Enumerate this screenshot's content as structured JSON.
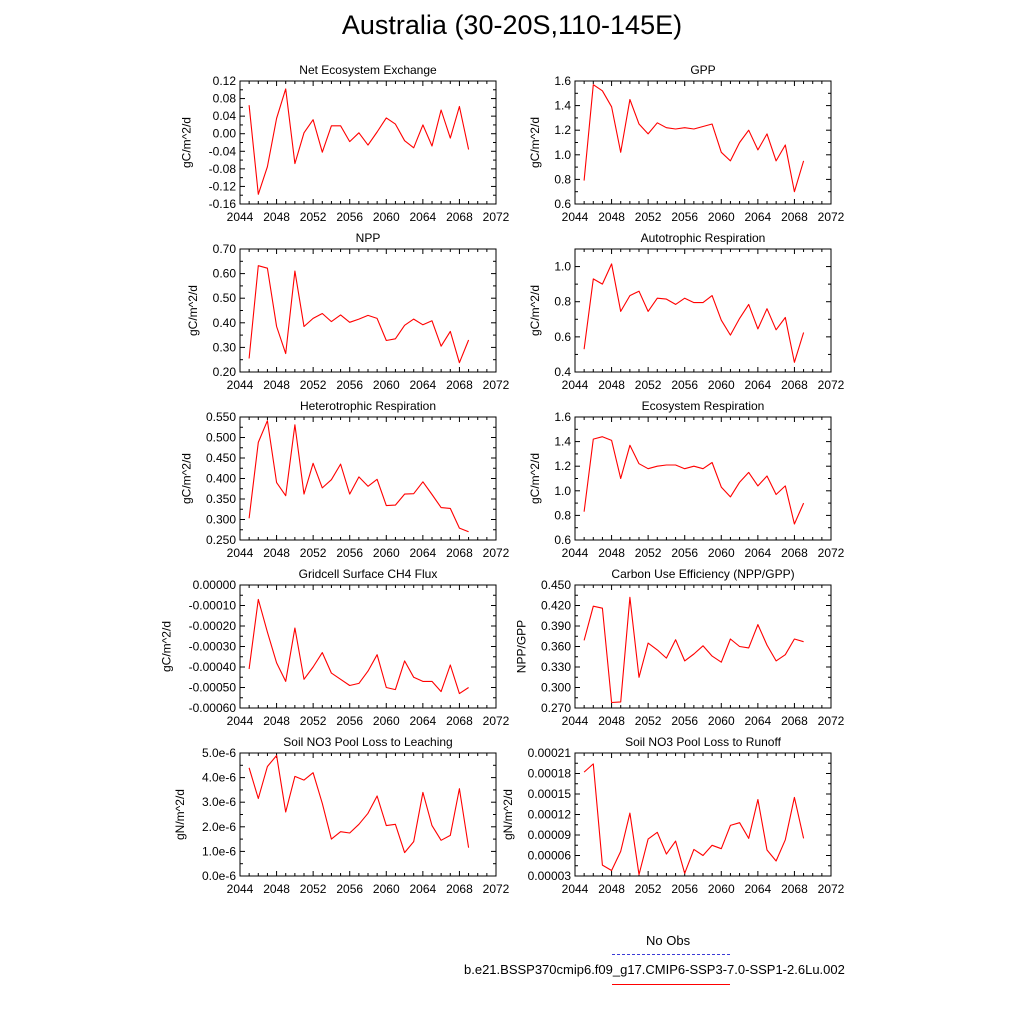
{
  "title": "Australia (30-20S,110-145E)",
  "legend": {
    "items": [
      {
        "label": "No Obs",
        "color": "#3b3bd6",
        "style": "dashed"
      },
      {
        "label": "b.e21.BSSP370cmip6.f09_g17.CMIP6-SSP3-7.0-SSP1-2.6Lu.002",
        "color": "#ff0000",
        "style": "solid"
      }
    ]
  },
  "chart_data": [
    {
      "type": "line",
      "title": "Net Ecosystem Exchange",
      "ylabel": "gC/m^2/d",
      "xlim": [
        2044,
        2072
      ],
      "ylim": [
        -0.16,
        0.12
      ],
      "yticks": [
        "-0.16",
        "-0.12",
        "-0.08",
        "-0.04",
        "0.00",
        "0.04",
        "0.08",
        "0.12"
      ],
      "xticks": [
        "2044",
        "2048",
        "2052",
        "2056",
        "2060",
        "2064",
        "2068",
        "2072"
      ],
      "series": [
        {
          "color": "#ff0000",
          "x": [
            2045,
            2046,
            2047,
            2048,
            2049,
            2050,
            2051,
            2052,
            2053,
            2054,
            2055,
            2056,
            2057,
            2058,
            2059,
            2060,
            2061,
            2062,
            2063,
            2064,
            2065,
            2066,
            2067,
            2068,
            2069
          ],
          "y": [
            0.065,
            -0.138,
            -0.075,
            0.035,
            0.102,
            -0.068,
            0.002,
            0.032,
            -0.042,
            0.018,
            0.018,
            -0.018,
            0.002,
            -0.026,
            0.004,
            0.036,
            0.022,
            -0.016,
            -0.032,
            0.02,
            -0.028,
            0.054,
            -0.01,
            0.062,
            -0.036
          ]
        }
      ]
    },
    {
      "type": "line",
      "title": "GPP",
      "ylabel": "gC/m^2/d",
      "xlim": [
        2044,
        2072
      ],
      "ylim": [
        0.6,
        1.6
      ],
      "yticks": [
        "0.6",
        "0.8",
        "1.0",
        "1.2",
        "1.4",
        "1.6"
      ],
      "xticks": [
        "2044",
        "2048",
        "2052",
        "2056",
        "2060",
        "2064",
        "2068",
        "2072"
      ],
      "series": [
        {
          "color": "#ff0000",
          "x": [
            2045,
            2046,
            2047,
            2048,
            2049,
            2050,
            2051,
            2052,
            2053,
            2054,
            2055,
            2056,
            2057,
            2058,
            2059,
            2060,
            2061,
            2062,
            2063,
            2064,
            2065,
            2066,
            2067,
            2068,
            2069
          ],
          "y": [
            0.79,
            1.57,
            1.52,
            1.39,
            1.02,
            1.45,
            1.25,
            1.17,
            1.26,
            1.22,
            1.21,
            1.22,
            1.21,
            1.23,
            1.25,
            1.02,
            0.95,
            1.1,
            1.2,
            1.04,
            1.17,
            0.95,
            1.08,
            0.7,
            0.95
          ]
        }
      ]
    },
    {
      "type": "line",
      "title": "NPP",
      "ylabel": "gC/m^2/d",
      "xlim": [
        2044,
        2072
      ],
      "ylim": [
        0.2,
        0.7
      ],
      "yticks": [
        "0.20",
        "0.30",
        "0.40",
        "0.50",
        "0.60",
        "0.70"
      ],
      "xticks": [
        "2044",
        "2048",
        "2052",
        "2056",
        "2060",
        "2064",
        "2068",
        "2072"
      ],
      "series": [
        {
          "color": "#ff0000",
          "x": [
            2045,
            2046,
            2047,
            2048,
            2049,
            2050,
            2051,
            2052,
            2053,
            2054,
            2055,
            2056,
            2057,
            2058,
            2059,
            2060,
            2061,
            2062,
            2063,
            2064,
            2065,
            2066,
            2067,
            2068,
            2069
          ],
          "y": [
            0.255,
            0.632,
            0.622,
            0.385,
            0.275,
            0.61,
            0.385,
            0.418,
            0.438,
            0.405,
            0.432,
            0.402,
            0.415,
            0.43,
            0.418,
            0.328,
            0.335,
            0.39,
            0.415,
            0.392,
            0.408,
            0.305,
            0.365,
            0.238,
            0.33
          ]
        }
      ]
    },
    {
      "type": "line",
      "title": "Autotrophic Respiration",
      "ylabel": "gC/m^2/d",
      "xlim": [
        2044,
        2072
      ],
      "ylim": [
        0.4,
        1.1
      ],
      "yticks": [
        "0.4",
        "0.6",
        "0.8",
        "1.0"
      ],
      "xticks": [
        "2044",
        "2048",
        "2052",
        "2056",
        "2060",
        "2064",
        "2068",
        "2072"
      ],
      "series": [
        {
          "color": "#ff0000",
          "x": [
            2045,
            2046,
            2047,
            2048,
            2049,
            2050,
            2051,
            2052,
            2053,
            2054,
            2055,
            2056,
            2057,
            2058,
            2059,
            2060,
            2061,
            2062,
            2063,
            2064,
            2065,
            2066,
            2067,
            2068,
            2069
          ],
          "y": [
            0.53,
            0.93,
            0.9,
            1.015,
            0.745,
            0.835,
            0.86,
            0.745,
            0.82,
            0.815,
            0.785,
            0.82,
            0.795,
            0.795,
            0.835,
            0.695,
            0.61,
            0.705,
            0.785,
            0.645,
            0.76,
            0.64,
            0.71,
            0.455,
            0.625
          ]
        }
      ]
    },
    {
      "type": "line",
      "title": "Heterotrophic Respiration",
      "ylabel": "gC/m^2/d",
      "xlim": [
        2044,
        2072
      ],
      "ylim": [
        0.25,
        0.55
      ],
      "yticks": [
        "0.250",
        "0.300",
        "0.350",
        "0.400",
        "0.450",
        "0.500",
        "0.550"
      ],
      "xticks": [
        "2044",
        "2048",
        "2052",
        "2056",
        "2060",
        "2064",
        "2068",
        "2072"
      ],
      "series": [
        {
          "color": "#ff0000",
          "x": [
            2045,
            2046,
            2047,
            2048,
            2049,
            2050,
            2051,
            2052,
            2053,
            2054,
            2055,
            2056,
            2057,
            2058,
            2059,
            2060,
            2061,
            2062,
            2063,
            2064,
            2065,
            2066,
            2067,
            2068,
            2069
          ],
          "y": [
            0.303,
            0.488,
            0.541,
            0.39,
            0.358,
            0.531,
            0.362,
            0.437,
            0.377,
            0.397,
            0.435,
            0.362,
            0.404,
            0.381,
            0.398,
            0.334,
            0.335,
            0.362,
            0.363,
            0.392,
            0.361,
            0.329,
            0.327,
            0.279,
            0.27
          ]
        }
      ]
    },
    {
      "type": "line",
      "title": "Ecosystem Respiration",
      "ylabel": "gC/m^2/d",
      "xlim": [
        2044,
        2072
      ],
      "ylim": [
        0.6,
        1.6
      ],
      "yticks": [
        "0.6",
        "0.8",
        "1.0",
        "1.2",
        "1.4",
        "1.6"
      ],
      "xticks": [
        "2044",
        "2048",
        "2052",
        "2056",
        "2060",
        "2064",
        "2068",
        "2072"
      ],
      "series": [
        {
          "color": "#ff0000",
          "x": [
            2045,
            2046,
            2047,
            2048,
            2049,
            2050,
            2051,
            2052,
            2053,
            2054,
            2055,
            2056,
            2057,
            2058,
            2059,
            2060,
            2061,
            2062,
            2063,
            2064,
            2065,
            2066,
            2067,
            2068,
            2069
          ],
          "y": [
            0.83,
            1.42,
            1.44,
            1.41,
            1.1,
            1.37,
            1.22,
            1.18,
            1.2,
            1.21,
            1.21,
            1.18,
            1.2,
            1.18,
            1.23,
            1.03,
            0.95,
            1.07,
            1.15,
            1.04,
            1.12,
            0.97,
            1.04,
            0.73,
            0.9
          ]
        }
      ]
    },
    {
      "type": "line",
      "title": "Gridcell Surface CH4 Flux",
      "ylabel": "gC/m^2/d",
      "xlim": [
        2044,
        2072
      ],
      "ylim": [
        -0.0006,
        0.0
      ],
      "yticks": [
        "-0.00060",
        "-0.00050",
        "-0.00040",
        "-0.00030",
        "-0.00020",
        "-0.00010",
        "0.00000"
      ],
      "xticks": [
        "2044",
        "2048",
        "2052",
        "2056",
        "2060",
        "2064",
        "2068",
        "2072"
      ],
      "series": [
        {
          "color": "#ff0000",
          "x": [
            2045,
            2046,
            2047,
            2048,
            2049,
            2050,
            2051,
            2052,
            2053,
            2054,
            2055,
            2056,
            2057,
            2058,
            2059,
            2060,
            2061,
            2062,
            2063,
            2064,
            2065,
            2066,
            2067,
            2068,
            2069
          ],
          "y": [
            -0.00041,
            -7e-05,
            -0.00023,
            -0.00038,
            -0.00047,
            -0.00021,
            -0.00046,
            -0.0004,
            -0.00033,
            -0.00043,
            -0.00046,
            -0.00049,
            -0.00048,
            -0.00042,
            -0.00034,
            -0.0005,
            -0.00051,
            -0.00037,
            -0.00045,
            -0.00047,
            -0.00047,
            -0.00052,
            -0.00039,
            -0.00053,
            -0.0005
          ]
        }
      ]
    },
    {
      "type": "line",
      "title": "Carbon Use Efficiency (NPP/GPP)",
      "ylabel": "NPP/GPP",
      "xlim": [
        2044,
        2072
      ],
      "ylim": [
        0.27,
        0.45
      ],
      "yticks": [
        "0.270",
        "0.300",
        "0.330",
        "0.360",
        "0.390",
        "0.420",
        "0.450"
      ],
      "xticks": [
        "2044",
        "2048",
        "2052",
        "2056",
        "2060",
        "2064",
        "2068",
        "2072"
      ],
      "series": [
        {
          "color": "#ff0000",
          "x": [
            2045,
            2046,
            2047,
            2048,
            2049,
            2050,
            2051,
            2052,
            2053,
            2054,
            2055,
            2056,
            2057,
            2058,
            2059,
            2060,
            2061,
            2062,
            2063,
            2064,
            2065,
            2066,
            2067,
            2068,
            2069
          ],
          "y": [
            0.369,
            0.419,
            0.416,
            0.278,
            0.279,
            0.432,
            0.315,
            0.365,
            0.355,
            0.343,
            0.37,
            0.339,
            0.349,
            0.361,
            0.346,
            0.337,
            0.371,
            0.36,
            0.358,
            0.392,
            0.362,
            0.339,
            0.348,
            0.371,
            0.367
          ]
        }
      ]
    },
    {
      "type": "line",
      "title": "Soil NO3 Pool Loss to Leaching",
      "ylabel": "gN/m^2/d",
      "xlim": [
        2044,
        2072
      ],
      "ylim": [
        0.0,
        5e-06
      ],
      "yticks": [
        "0.0e-6",
        "1.0e-6",
        "2.0e-6",
        "3.0e-6",
        "4.0e-6",
        "5.0e-6"
      ],
      "xticks": [
        "2044",
        "2048",
        "2052",
        "2056",
        "2060",
        "2064",
        "2068",
        "2072"
      ],
      "series": [
        {
          "color": "#ff0000",
          "x": [
            2045,
            2046,
            2047,
            2048,
            2049,
            2050,
            2051,
            2052,
            2053,
            2054,
            2055,
            2056,
            2057,
            2058,
            2059,
            2060,
            2061,
            2062,
            2063,
            2064,
            2065,
            2066,
            2067,
            2068,
            2069
          ],
          "y": [
            4.4e-06,
            3.15e-06,
            4.45e-06,
            4.9e-06,
            2.6e-06,
            4.05e-06,
            3.9e-06,
            4.2e-06,
            2.95e-06,
            1.5e-06,
            1.8e-06,
            1.75e-06,
            2.1e-06,
            2.55e-06,
            3.25e-06,
            2.05e-06,
            2.1e-06,
            9.5e-07,
            1.4e-06,
            3.4e-06,
            2.05e-06,
            1.45e-06,
            1.65e-06,
            3.55e-06,
            1.15e-06
          ]
        }
      ]
    },
    {
      "type": "line",
      "title": "Soil NO3 Pool Loss to Runoff",
      "ylabel": "gN/m^2/d",
      "xlim": [
        2044,
        2072
      ],
      "ylim": [
        3e-05,
        0.00021
      ],
      "yticks": [
        "0.00003",
        "0.00006",
        "0.00009",
        "0.00012",
        "0.00015",
        "0.00018",
        "0.00021"
      ],
      "xticks": [
        "2044",
        "2048",
        "2052",
        "2056",
        "2060",
        "2064",
        "2068",
        "2072"
      ],
      "series": [
        {
          "color": "#ff0000",
          "x": [
            2045,
            2046,
            2047,
            2048,
            2049,
            2050,
            2051,
            2052,
            2053,
            2054,
            2055,
            2056,
            2057,
            2058,
            2059,
            2060,
            2061,
            2062,
            2063,
            2064,
            2065,
            2066,
            2067,
            2068,
            2069
          ],
          "y": [
            0.000182,
            0.000194,
            4.6e-05,
            3.8e-05,
            6.6e-05,
            0.000122,
            3.2e-05,
            8.4e-05,
            9.4e-05,
            6.2e-05,
            8.1e-05,
            3.4e-05,
            6.9e-05,
            6e-05,
            7.5e-05,
            7e-05,
            0.000104,
            0.000108,
            8.5e-05,
            0.000142,
            6.8e-05,
            5.2e-05,
            8.3e-05,
            0.000145,
            8.5e-05
          ]
        }
      ]
    }
  ]
}
